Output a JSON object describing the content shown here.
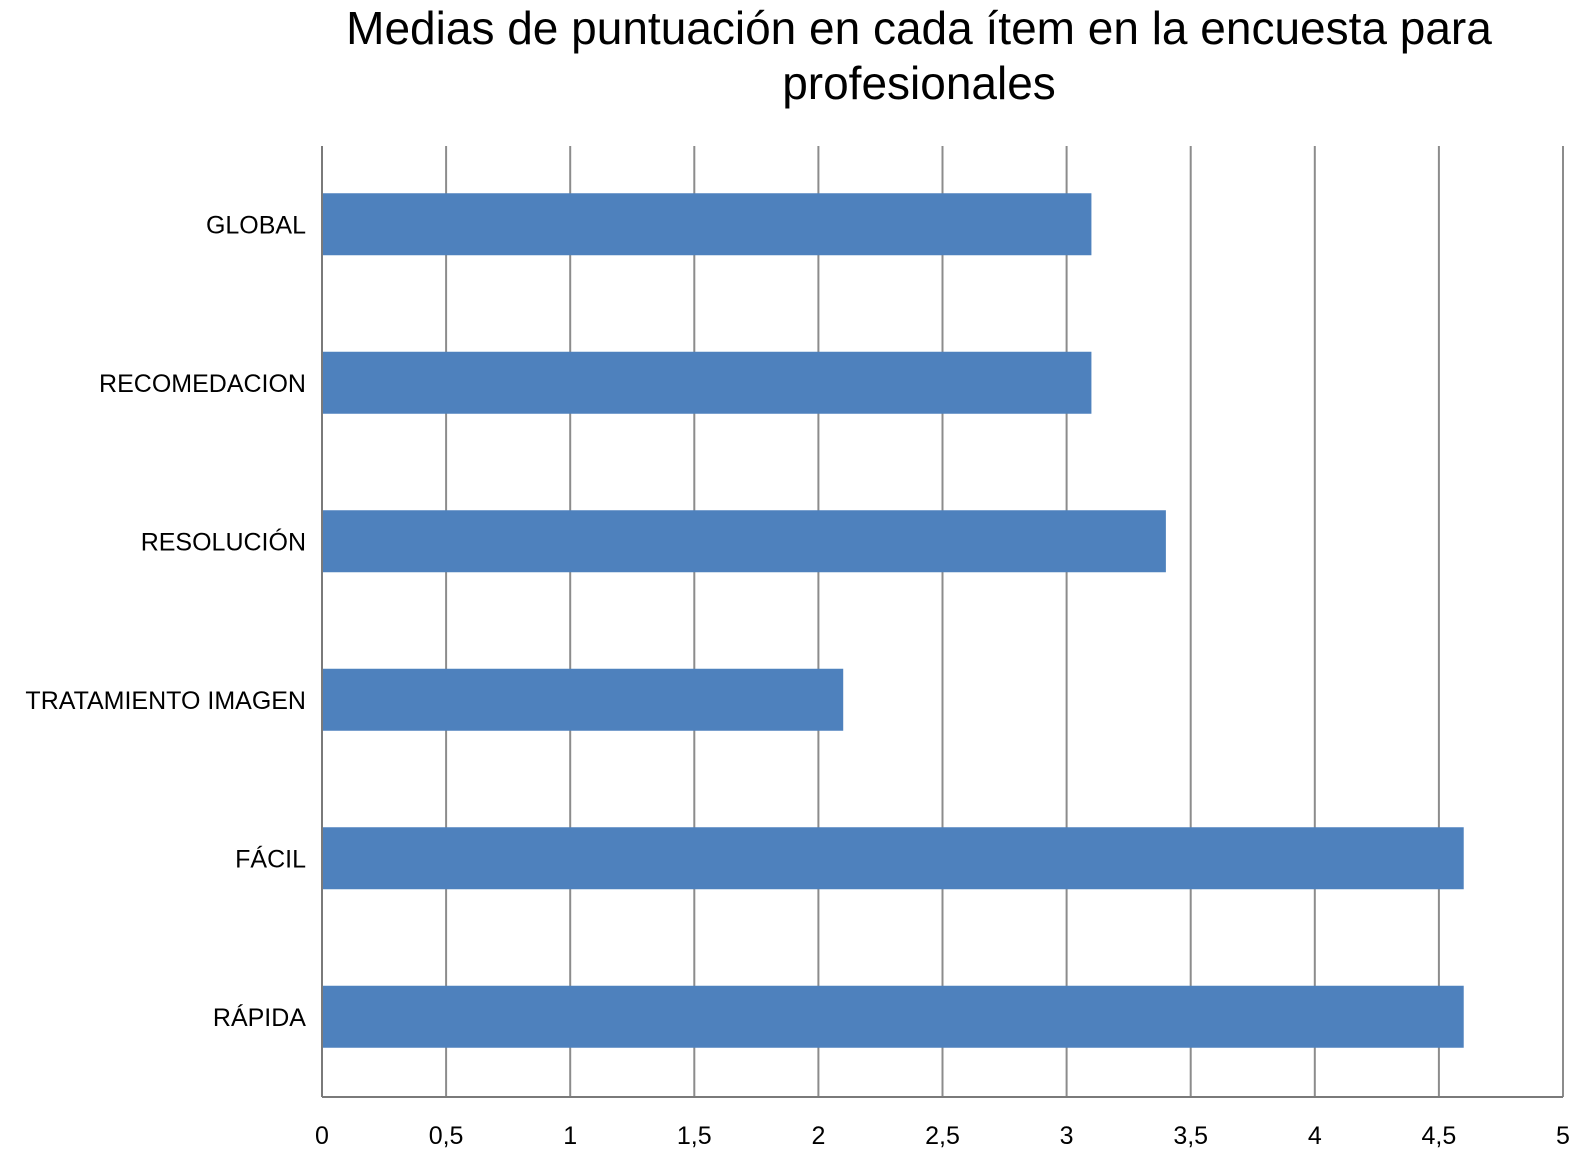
{
  "chart_data": {
    "type": "bar",
    "orientation": "horizontal",
    "title": "Medias de puntuación en cada ítem en la encuesta para profesionales",
    "title_lines": [
      "Medias de puntuación en cada ítem en la encuesta para",
      "profesionales"
    ],
    "categories": [
      "GLOBAL",
      "RECOMEDACION",
      "RESOLUCIÓN",
      "TRATAMIENTO IMAGEN",
      "FÁCIL",
      "RÁPIDA"
    ],
    "values": [
      3.1,
      3.1,
      3.4,
      2.1,
      4.6,
      4.6
    ],
    "xlabel": "",
    "ylabel": "",
    "xlim": [
      0,
      5
    ],
    "x_ticks": [
      0,
      0.5,
      1,
      1.5,
      2,
      2.5,
      3,
      3.5,
      4,
      4.5,
      5
    ],
    "x_tick_labels": [
      "0",
      "0,5",
      "1",
      "1,5",
      "2",
      "2,5",
      "3",
      "3,5",
      "4",
      "4,5",
      "5"
    ],
    "grid": true,
    "legend": "none",
    "colors": {
      "bar": "#4e81bd",
      "grid": "#8c8c8c",
      "text": "#000000"
    }
  }
}
